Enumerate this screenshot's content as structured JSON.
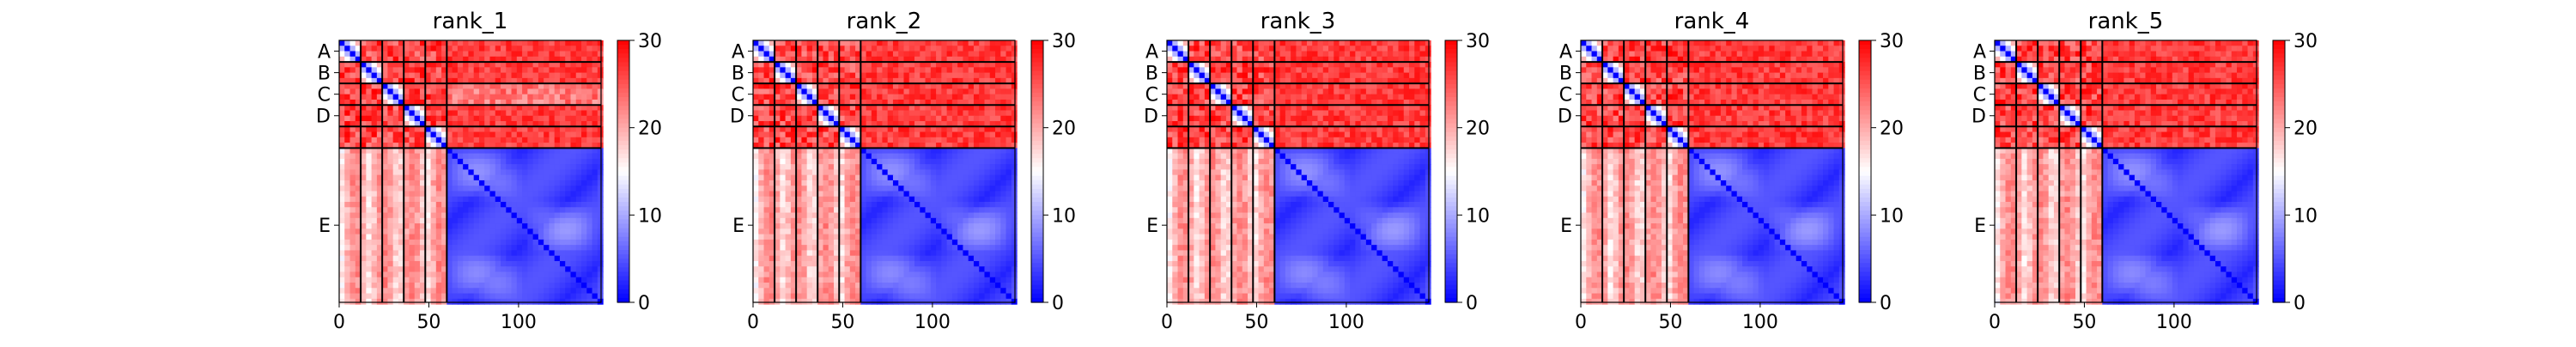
{
  "chart_data": {
    "type": "heatmap",
    "colormap": {
      "low": "#0000ff",
      "mid": "#ffffff",
      "high": "#ff0000",
      "range": [
        0,
        30
      ],
      "ticks": [
        "0",
        "10",
        "20",
        "30"
      ]
    },
    "chain_boundaries": [
      0,
      12,
      24,
      36,
      48,
      60,
      146
    ],
    "chain_labels": [
      "A",
      "B",
      "C",
      "D",
      "E"
    ],
    "x_ticks": [
      {
        "value": 0,
        "label": "0"
      },
      {
        "value": 50,
        "label": "50"
      },
      {
        "value": 100,
        "label": "100"
      }
    ],
    "xlim": [
      0,
      146
    ],
    "panels": [
      {
        "title": "rank_1"
      },
      {
        "title": "rank_2"
      },
      {
        "title": "rank_3"
      },
      {
        "title": "rank_4"
      },
      {
        "title": "rank_5"
      }
    ]
  }
}
